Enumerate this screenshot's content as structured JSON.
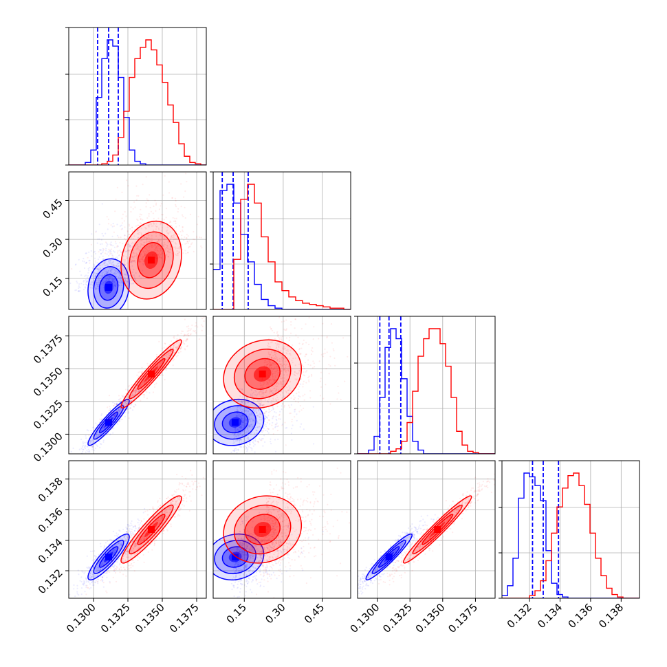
{
  "chart_data": {
    "type": "corner",
    "grid": true,
    "parameters": [
      {
        "range": [
          0.1282,
          0.1382
        ],
        "ticks": [
          0.13,
          0.1325,
          0.135,
          0.1375
        ],
        "tick_labels": [
          "0.1300",
          "0.1325",
          "0.1350",
          "0.1375"
        ]
      },
      {
        "range": [
          0.03,
          0.56
        ],
        "ticks": [
          0.15,
          0.3,
          0.45
        ],
        "tick_labels": [
          "0.15",
          "0.30",
          "0.45"
        ]
      },
      {
        "range": [
          0.1285,
          0.139
        ],
        "ticks": [
          0.13,
          0.1325,
          0.135,
          0.1375
        ],
        "tick_labels": [
          "0.1300",
          "0.1325",
          "0.1350",
          "0.1375"
        ]
      },
      {
        "range": [
          0.1302,
          0.1392
        ],
        "ticks": [
          0.132,
          0.134,
          0.136,
          0.138
        ],
        "tick_labels": [
          "0.132",
          "0.134",
          "0.136",
          "0.138"
        ]
      }
    ],
    "series": [
      {
        "color": "#0000ff",
        "means": [
          0.1311,
          0.115,
          0.1309,
          0.1329
        ],
        "sigmas": [
          0.00075,
          0.055,
          0.00088,
          0.00075
        ],
        "correlations": [
          [
            1,
            0.12,
            0.93,
            0.88
          ],
          [
            0.12,
            1,
            0.12,
            0.12
          ],
          [
            0.93,
            0.12,
            1,
            0.95
          ],
          [
            0.88,
            0.12,
            0.95,
            1
          ]
        ],
        "quantile_lines": [
          [
            0.1303,
            0.1311,
            0.1318
          ],
          [
            0.065,
            0.107,
            0.165
          ],
          [
            0.1302,
            0.1309,
            0.1318
          ],
          [
            0.1322,
            0.1329,
            0.1339
          ]
        ],
        "histograms": [
          [
            0,
            0,
            0,
            2,
            12,
            54,
            85,
            100,
            95,
            70,
            38,
            12,
            3,
            1,
            0,
            0,
            0,
            0,
            0,
            0,
            0,
            0,
            0,
            0,
            0
          ],
          [
            32,
            95,
            100,
            85,
            60,
            38,
            20,
            8,
            3,
            1,
            0,
            0,
            0,
            0,
            0,
            0,
            0,
            0,
            0,
            0
          ],
          [
            0,
            0,
            3,
            14,
            45,
            85,
            100,
            92,
            60,
            30,
            10,
            3,
            0,
            0,
            0,
            0,
            0,
            0,
            0,
            0,
            0,
            0,
            0,
            0,
            0
          ],
          [
            2,
            10,
            32,
            80,
            100,
            97,
            90,
            78,
            38,
            12,
            3,
            1,
            0,
            0,
            0,
            0,
            0,
            0,
            0,
            0,
            0,
            0,
            0,
            0,
            0
          ]
        ]
      },
      {
        "color": "#ff0000",
        "means": [
          0.1342,
          0.22,
          0.1346,
          0.1347
        ],
        "sigmas": [
          0.0011,
          0.075,
          0.0013,
          0.0011
        ],
        "correlations": [
          [
            1,
            0.15,
            0.96,
            0.93
          ],
          [
            0.15,
            1,
            0.15,
            0.12
          ],
          [
            0.96,
            0.15,
            1,
            0.97
          ],
          [
            0.93,
            0.12,
            0.97,
            1
          ]
        ],
        "quantile_lines": [],
        "histograms": [
          [
            0,
            0,
            0,
            0,
            0,
            0,
            1,
            3,
            8,
            22,
            43,
            70,
            85,
            94,
            100,
            92,
            80,
            66,
            48,
            34,
            17,
            7,
            2,
            1,
            0
          ],
          [
            0,
            0,
            0,
            40,
            88,
            100,
            85,
            58,
            38,
            22,
            15,
            10,
            7,
            5,
            4,
            3,
            2,
            1,
            1,
            0
          ],
          [
            0,
            0,
            0,
            0,
            0,
            0,
            2,
            4,
            10,
            25,
            50,
            78,
            92,
            100,
            100,
            88,
            70,
            45,
            18,
            7,
            2,
            1,
            0,
            0,
            0
          ],
          [
            0,
            0,
            0,
            0,
            0,
            2,
            6,
            14,
            30,
            52,
            73,
            88,
            98,
            100,
            90,
            75,
            52,
            32,
            18,
            8,
            3,
            1,
            0,
            0,
            0
          ]
        ]
      }
    ]
  }
}
